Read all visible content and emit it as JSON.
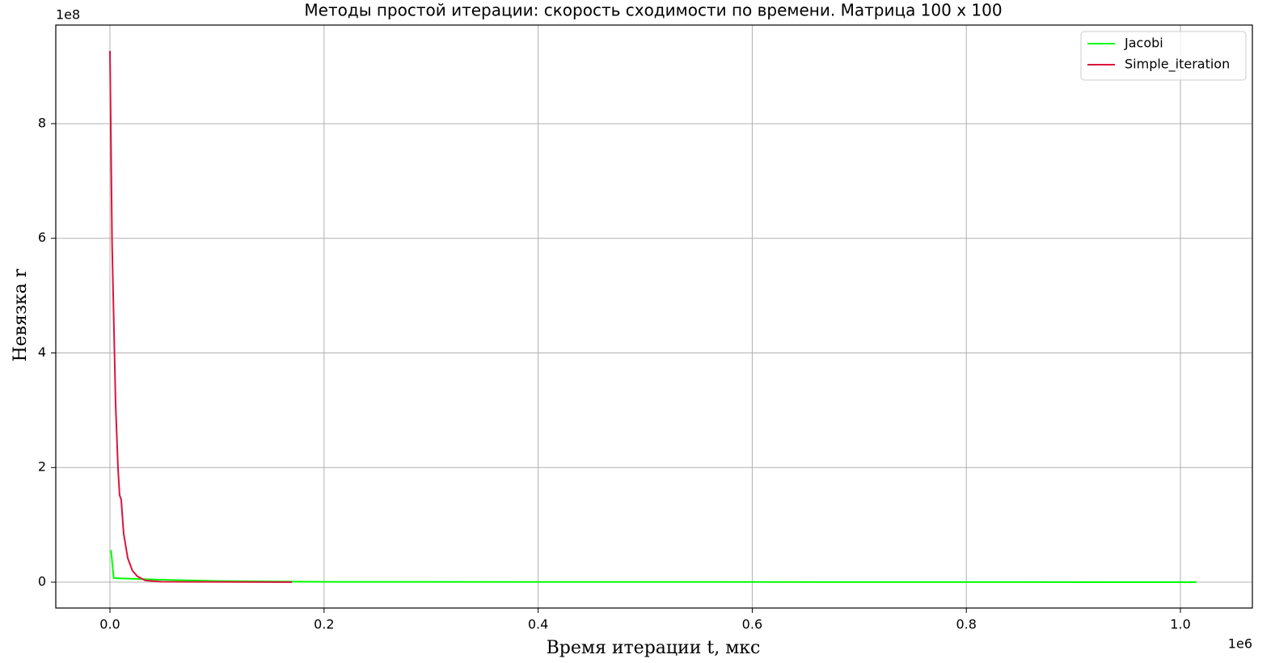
{
  "chart_data": {
    "type": "line",
    "title": "Методы простой итерации: скорость сходимости по времени. Матрица 100 x 100",
    "x_label": "Время итерации t, мкс",
    "y_label": "Невязка r",
    "x_offset_label": "1e6",
    "y_offset_label": "1e8",
    "xlim": [
      -50600,
      1067200
    ],
    "ylim": [
      -45150000,
      972100000
    ],
    "xticks": [
      {
        "value": 0,
        "label": "0.0"
      },
      {
        "value": 200000,
        "label": "0.2"
      },
      {
        "value": 400000,
        "label": "0.4"
      },
      {
        "value": 600000,
        "label": "0.6"
      },
      {
        "value": 800000,
        "label": "0.8"
      },
      {
        "value": 1000000,
        "label": "1.0"
      }
    ],
    "yticks": [
      {
        "value": 0,
        "label": "0"
      },
      {
        "value": 200000000,
        "label": "2"
      },
      {
        "value": 400000000,
        "label": "4"
      },
      {
        "value": 600000000,
        "label": "6"
      },
      {
        "value": 800000000,
        "label": "8"
      }
    ],
    "grid": true,
    "legend": "upper right",
    "series": [
      {
        "name": "Jacobi",
        "color": "#00ff00",
        "x": [
          1000,
          3500,
          50000,
          100000,
          200000,
          1015000
        ],
        "values": [
          56000000,
          7000000,
          4000000,
          2000000,
          500000,
          0
        ]
      },
      {
        "name": "Simple_iteration",
        "color": "#dc143c",
        "x": [
          0,
          2000,
          5300,
          7500,
          9000,
          10500,
          12800,
          16600,
          21000,
          25700,
          33000,
          48000,
          170000
        ],
        "values": [
          927000000,
          590000000,
          310000000,
          200000000,
          152000000,
          144000000,
          85000000,
          42000000,
          20000000,
          10000000,
          3000000,
          700000,
          0
        ]
      }
    ]
  }
}
